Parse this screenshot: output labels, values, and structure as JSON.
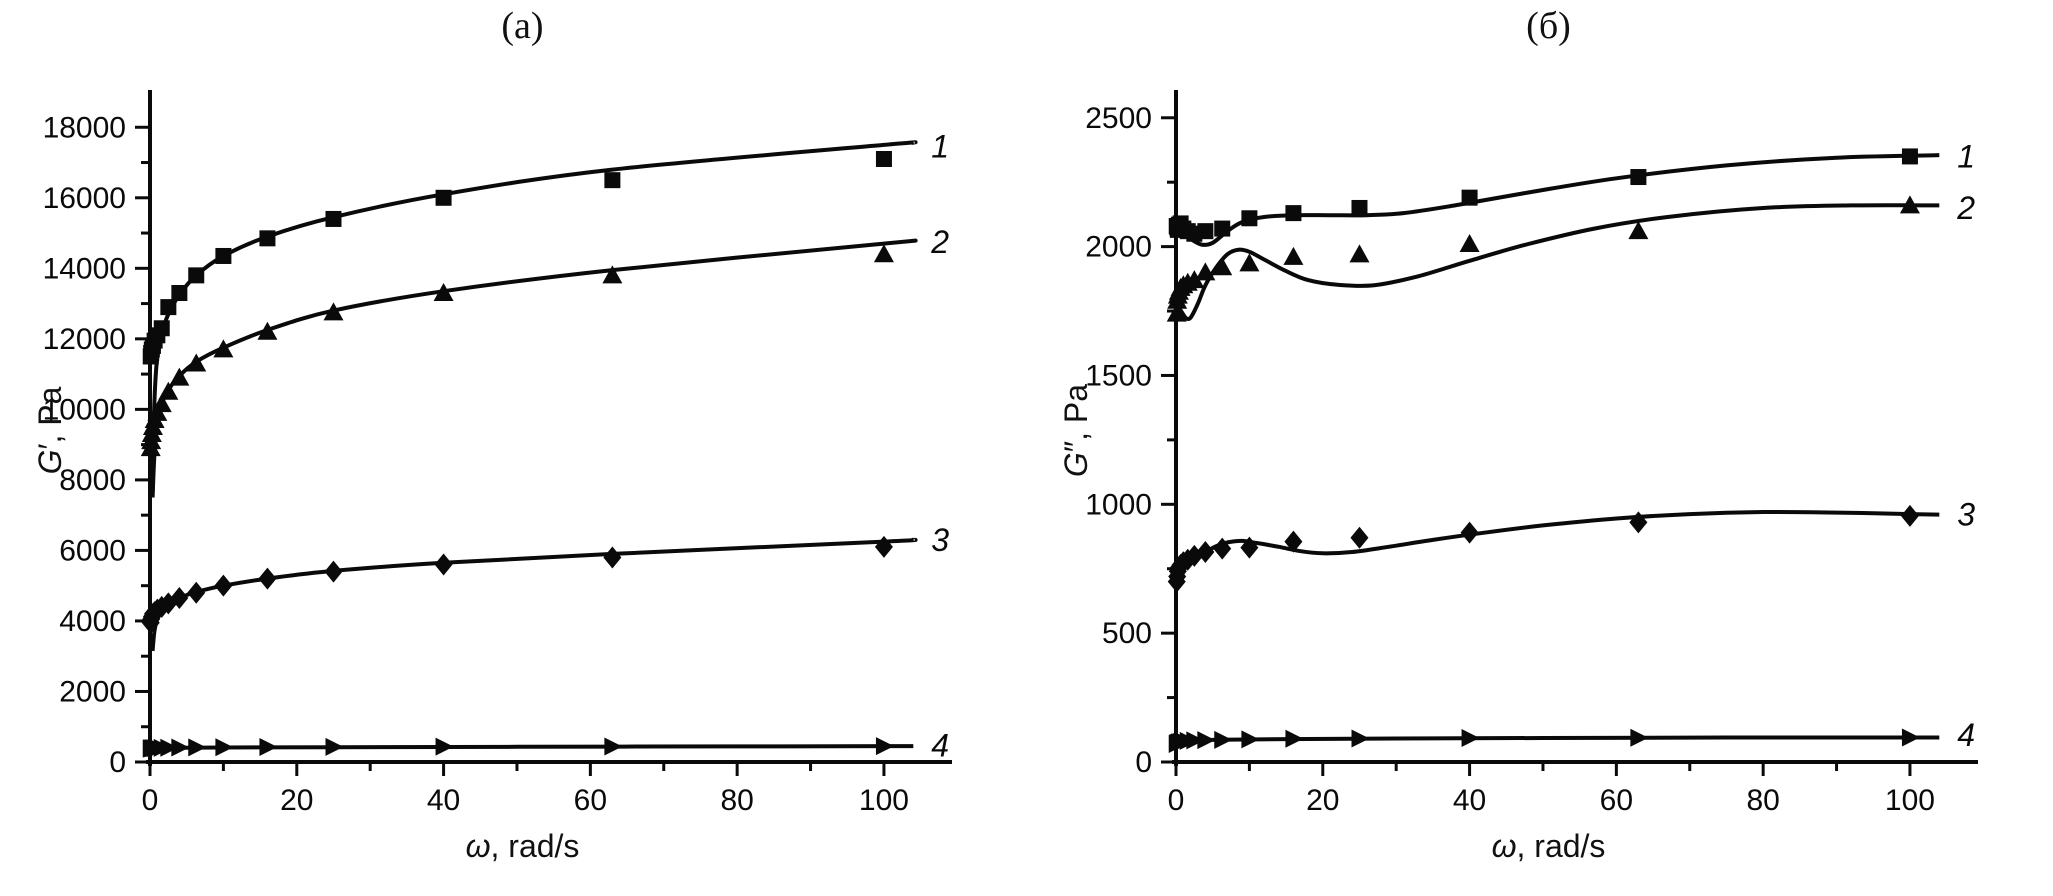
{
  "chart_data": [
    {
      "id": "a",
      "type": "line",
      "title": "(a)",
      "xlabel": "ω, rad/s",
      "xlabel_sym": "ω",
      "xlabel_rest": ", rad/s",
      "ylabel": "G′, Pa",
      "ylabel_sym": "G",
      "ylabel_rest": "′, Pa",
      "xlim": [
        0,
        109
      ],
      "ylim": [
        0,
        19000
      ],
      "xticks": [
        0,
        20,
        40,
        60,
        80,
        100
      ],
      "xminor_step": 10,
      "yticks": [
        0,
        2000,
        4000,
        6000,
        8000,
        10000,
        12000,
        14000,
        16000,
        18000
      ],
      "yminor_step": 1000,
      "grid": false,
      "legend_position": "curve-end-labels",
      "x": [
        0.1,
        0.16,
        0.25,
        0.4,
        0.63,
        1,
        1.6,
        2.5,
        4,
        6.3,
        10,
        16,
        25,
        40,
        63,
        100
      ],
      "series": [
        {
          "name": "1",
          "marker": "square",
          "values": [
            11500,
            11600,
            11700,
            11800,
            11950,
            12100,
            12300,
            12900,
            13300,
            13800,
            14350,
            14850,
            15400,
            16000,
            16500,
            17100
          ],
          "curve": [
            [
              0.35,
              7600
            ],
            [
              0.6,
              10200
            ],
            [
              1,
              11500
            ],
            [
              1.6,
              12150
            ],
            [
              2.5,
              12700
            ],
            [
              4,
              13250
            ],
            [
              6.3,
              13800
            ],
            [
              10,
              14350
            ],
            [
              16,
              14900
            ],
            [
              25,
              15450
            ],
            [
              40,
              16100
            ],
            [
              63,
              16800
            ],
            [
              100,
              17500
            ],
            [
              104,
              17560
            ]
          ],
          "label_pos": [
            104,
            17450
          ]
        },
        {
          "name": "2",
          "marker": "triangle-up",
          "values": [
            8900,
            9100,
            9300,
            9500,
            9700,
            9900,
            10150,
            10500,
            10900,
            11300,
            11700,
            12200,
            12750,
            13300,
            13800,
            14400
          ],
          "curve": [
            [
              0.35,
              7500
            ],
            [
              0.6,
              8700
            ],
            [
              1,
              9600
            ],
            [
              1.6,
              10150
            ],
            [
              2.5,
              10550
            ],
            [
              4,
              10950
            ],
            [
              6.3,
              11350
            ],
            [
              10,
              11750
            ],
            [
              16,
              12250
            ],
            [
              25,
              12800
            ],
            [
              40,
              13350
            ],
            [
              63,
              13950
            ],
            [
              100,
              14700
            ],
            [
              104,
              14780
            ]
          ],
          "label_pos": [
            104,
            14750
          ]
        },
        {
          "name": "3",
          "marker": "diamond",
          "values": [
            3950,
            4050,
            4120,
            4200,
            4250,
            4320,
            4400,
            4500,
            4650,
            4800,
            5000,
            5200,
            5400,
            5600,
            5800,
            6100
          ],
          "curve": [
            [
              0.35,
              3150
            ],
            [
              0.6,
              3700
            ],
            [
              1,
              4050
            ],
            [
              1.6,
              4250
            ],
            [
              2.5,
              4450
            ],
            [
              4,
              4650
            ],
            [
              6.3,
              4820
            ],
            [
              10,
              5000
            ],
            [
              16,
              5200
            ],
            [
              25,
              5420
            ],
            [
              40,
              5650
            ],
            [
              63,
              5900
            ],
            [
              100,
              6250
            ],
            [
              104,
              6300
            ]
          ],
          "label_pos": [
            104,
            6300
          ]
        },
        {
          "name": "4",
          "marker": "triangle-right",
          "values": [
            380,
            385,
            388,
            392,
            395,
            398,
            402,
            405,
            410,
            415,
            420,
            425,
            430,
            435,
            440,
            450
          ],
          "curve": [
            [
              0.35,
              390
            ],
            [
              2,
              400
            ],
            [
              10,
              412
            ],
            [
              25,
              420
            ],
            [
              50,
              432
            ],
            [
              80,
              442
            ],
            [
              104,
              450
            ]
          ],
          "label_pos": [
            104,
            470
          ]
        }
      ]
    },
    {
      "id": "b",
      "type": "line",
      "title": "(б)",
      "xlabel": "ω, rad/s",
      "xlabel_sym": "ω",
      "xlabel_rest": ", rad/s",
      "ylabel": "G″, Pa",
      "ylabel_sym": "G",
      "ylabel_rest": "″, Pa",
      "xlim": [
        0,
        109
      ],
      "ylim": [
        0,
        2600
      ],
      "xticks": [
        0,
        20,
        40,
        60,
        80,
        100
      ],
      "xminor_step": 10,
      "yticks": [
        0,
        500,
        1000,
        1500,
        2000,
        2500
      ],
      "yminor_step": 250,
      "grid": false,
      "legend_position": "curve-end-labels",
      "x": [
        0.1,
        0.16,
        0.25,
        0.4,
        0.63,
        1,
        1.6,
        2.5,
        4,
        6.3,
        10,
        16,
        25,
        40,
        63,
        100
      ],
      "series": [
        {
          "name": "1",
          "marker": "square",
          "values": [
            2080,
            2075,
            2065,
            2085,
            2090,
            2070,
            2060,
            2050,
            2060,
            2070,
            2110,
            2130,
            2150,
            2190,
            2270,
            2350
          ],
          "curve": [
            [
              0.3,
              2060
            ],
            [
              1,
              2055
            ],
            [
              2,
              2030
            ],
            [
              3.5,
              2008
            ],
            [
              5,
              2015
            ],
            [
              7,
              2060
            ],
            [
              9,
              2095
            ],
            [
              12,
              2115
            ],
            [
              16,
              2122
            ],
            [
              21,
              2122
            ],
            [
              26,
              2122
            ],
            [
              31,
              2130
            ],
            [
              38,
              2160
            ],
            [
              48,
              2210
            ],
            [
              60,
              2265
            ],
            [
              75,
              2315
            ],
            [
              90,
              2345
            ],
            [
              104,
              2355
            ]
          ],
          "label_pos": [
            104,
            2350
          ]
        },
        {
          "name": "2",
          "marker": "triangle-up",
          "values": [
            1740,
            1790,
            1810,
            1825,
            1840,
            1850,
            1860,
            1870,
            1900,
            1920,
            1935,
            1960,
            1970,
            2010,
            2060,
            2160
          ],
          "curve": [
            [
              0.3,
              1770
            ],
            [
              0.8,
              1745
            ],
            [
              1.4,
              1722
            ],
            [
              2,
              1725
            ],
            [
              3,
              1780
            ],
            [
              4,
              1850
            ],
            [
              5.5,
              1920
            ],
            [
              7,
              1970
            ],
            [
              8.5,
              1988
            ],
            [
              10,
              1980
            ],
            [
              12,
              1950
            ],
            [
              15,
              1905
            ],
            [
              18,
              1870
            ],
            [
              22,
              1852
            ],
            [
              27,
              1850
            ],
            [
              33,
              1885
            ],
            [
              40,
              1945
            ],
            [
              48,
              2010
            ],
            [
              57,
              2070
            ],
            [
              67,
              2115
            ],
            [
              80,
              2150
            ],
            [
              92,
              2160
            ],
            [
              104,
              2160
            ]
          ],
          "label_pos": [
            104,
            2150
          ]
        },
        {
          "name": "3",
          "marker": "diamond",
          "values": [
            700,
            720,
            740,
            755,
            765,
            775,
            785,
            800,
            815,
            828,
            832,
            855,
            870,
            890,
            930,
            955
          ],
          "curve": [
            [
              0.3,
              690
            ],
            [
              0.6,
              730
            ],
            [
              1,
              760
            ],
            [
              1.6,
              780
            ],
            [
              2.5,
              795
            ],
            [
              4,
              815
            ],
            [
              5.5,
              838
            ],
            [
              7,
              852
            ],
            [
              9,
              858
            ],
            [
              11,
              850
            ],
            [
              14,
              835
            ],
            [
              17,
              818
            ],
            [
              20,
              810
            ],
            [
              24,
              815
            ],
            [
              29,
              835
            ],
            [
              35,
              862
            ],
            [
              42,
              890
            ],
            [
              50,
              918
            ],
            [
              60,
              945
            ],
            [
              70,
              962
            ],
            [
              80,
              970
            ],
            [
              90,
              968
            ],
            [
              100,
              962
            ],
            [
              104,
              960
            ]
          ],
          "label_pos": [
            104,
            960
          ]
        },
        {
          "name": "4",
          "marker": "triangle-right",
          "values": [
            70,
            72,
            74,
            76,
            78,
            80,
            82,
            84,
            85,
            86,
            88,
            90,
            91,
            93,
            94,
            95
          ],
          "curve": [
            [
              0.3,
              78
            ],
            [
              2,
              82
            ],
            [
              6,
              86
            ],
            [
              15,
              89
            ],
            [
              30,
              91
            ],
            [
              50,
              93
            ],
            [
              75,
              95
            ],
            [
              104,
              95
            ]
          ],
          "label_pos": [
            104,
            105
          ]
        }
      ]
    }
  ],
  "style": {
    "ink_color": "#0a0a0a",
    "background_color": "#ffffff"
  }
}
